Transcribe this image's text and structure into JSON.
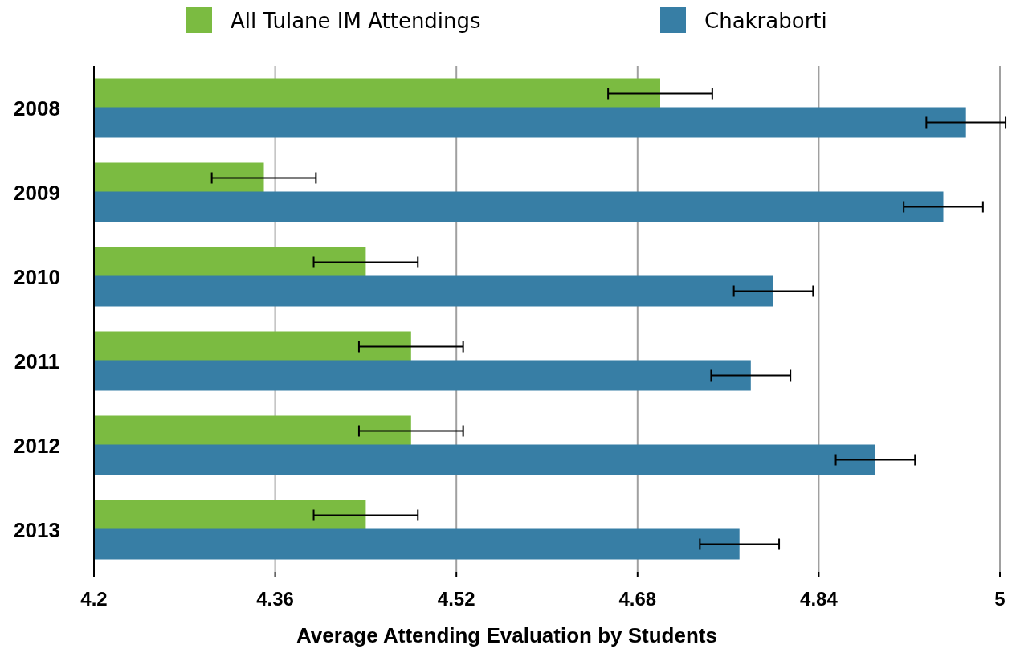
{
  "chart_data": {
    "type": "bar",
    "orientation": "horizontal",
    "xlabel": "Average Attending Evaluation by Students",
    "categories": [
      "2008",
      "2009",
      "2010",
      "2011",
      "2012",
      "2013"
    ],
    "series": [
      {
        "name": "All Tulane IM Attendings",
        "color": "#7bbb41",
        "values": [
          4.7,
          4.35,
          4.44,
          4.48,
          4.48,
          4.44
        ],
        "errors": [
          0.046,
          0.046,
          0.046,
          0.046,
          0.046,
          0.046
        ]
      },
      {
        "name": "Chakraborti",
        "color": "#377ea5",
        "values": [
          4.97,
          4.95,
          4.8,
          4.78,
          4.89,
          4.77
        ],
        "errors": [
          0.035,
          0.035,
          0.035,
          0.035,
          0.035,
          0.035
        ]
      }
    ],
    "xlim": [
      4.2,
      5
    ],
    "xticks": [
      4.2,
      4.36,
      4.52,
      4.68,
      4.84,
      5
    ],
    "grid": "x",
    "legend": "top"
  }
}
